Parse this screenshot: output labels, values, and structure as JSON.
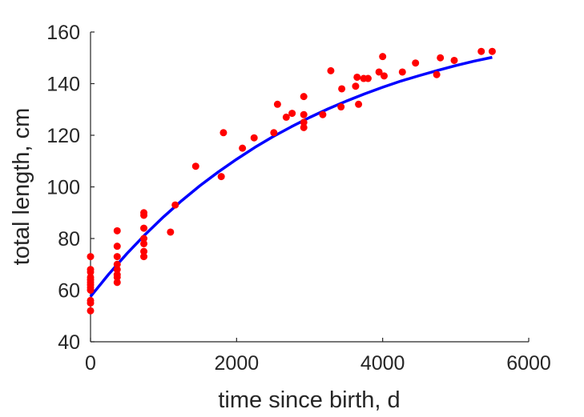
{
  "chart_data": {
    "type": "scatter",
    "xlabel": "time since birth, d",
    "ylabel": "total length, cm",
    "xlim": [
      0,
      6000
    ],
    "ylim": [
      40,
      160
    ],
    "xticks": [
      0,
      2000,
      4000,
      6000
    ],
    "yticks": [
      40,
      60,
      80,
      100,
      120,
      140,
      160
    ],
    "xtick_labels": [
      "0",
      "2000",
      "4000",
      "6000"
    ],
    "ytick_labels": [
      "40",
      "60",
      "80",
      "100",
      "120",
      "140",
      "160"
    ],
    "grid": false,
    "series": [
      {
        "kind": "scatter",
        "color": "#ff0000",
        "points": [
          [
            0,
            52
          ],
          [
            0,
            55
          ],
          [
            0,
            56
          ],
          [
            0,
            60
          ],
          [
            0,
            61
          ],
          [
            0,
            62
          ],
          [
            0,
            63
          ],
          [
            0,
            64
          ],
          [
            0,
            65
          ],
          [
            0,
            67
          ],
          [
            0,
            68
          ],
          [
            0,
            73
          ],
          [
            365,
            63
          ],
          [
            365,
            65
          ],
          [
            365,
            66
          ],
          [
            365,
            68
          ],
          [
            365,
            70
          ],
          [
            365,
            73
          ],
          [
            365,
            77
          ],
          [
            365,
            83
          ],
          [
            730,
            73
          ],
          [
            730,
            75
          ],
          [
            730,
            78
          ],
          [
            730,
            80
          ],
          [
            730,
            84
          ],
          [
            730,
            89
          ],
          [
            730,
            90
          ],
          [
            1095,
            82.5
          ],
          [
            1160,
            93
          ],
          [
            1440,
            108
          ],
          [
            1790,
            104
          ],
          [
            1820,
            121
          ],
          [
            2080,
            115
          ],
          [
            2240,
            119
          ],
          [
            2510,
            121
          ],
          [
            2560,
            132
          ],
          [
            2680,
            127
          ],
          [
            2760,
            128.5
          ],
          [
            2920,
            123
          ],
          [
            2920,
            125
          ],
          [
            2920,
            128
          ],
          [
            2920,
            135
          ],
          [
            3180,
            128
          ],
          [
            3290,
            145
          ],
          [
            3430,
            131
          ],
          [
            3440,
            138
          ],
          [
            3630,
            139
          ],
          [
            3650,
            142.5
          ],
          [
            3670,
            132
          ],
          [
            3740,
            142
          ],
          [
            3800,
            142
          ],
          [
            3950,
            144.5
          ],
          [
            4000,
            150.5
          ],
          [
            4020,
            143
          ],
          [
            4270,
            144.5
          ],
          [
            4450,
            148
          ],
          [
            4740,
            143.5
          ],
          [
            4790,
            150
          ],
          [
            4980,
            149
          ],
          [
            5350,
            152.5
          ],
          [
            5500,
            152.5
          ]
        ]
      },
      {
        "kind": "line",
        "color": "#0000ff",
        "x": [
          0,
          250,
          500,
          750,
          1000,
          1250,
          1500,
          1750,
          2000,
          2250,
          2500,
          2750,
          3000,
          3250,
          3500,
          3750,
          4000,
          4250,
          4500,
          4750,
          5000,
          5250,
          5500
        ],
        "y": [
          57.5,
          66.2,
          74.2,
          81.6,
          88.4,
          94.7,
          100.5,
          105.8,
          110.7,
          115.3,
          119.5,
          123.3,
          126.9,
          130.2,
          133.2,
          136.0,
          138.6,
          141.0,
          143.1,
          145.1,
          147.0,
          148.7,
          150.2
        ]
      }
    ]
  }
}
